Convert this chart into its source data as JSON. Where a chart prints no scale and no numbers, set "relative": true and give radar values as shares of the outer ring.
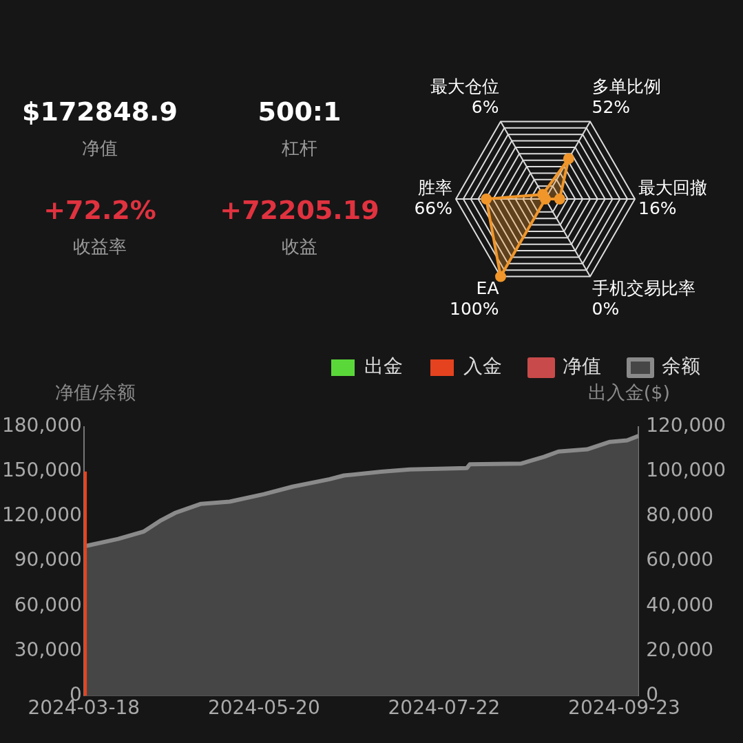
{
  "chart_data": [
    {
      "type": "other",
      "annotations": [
        "$172848.9",
        "净值",
        "500:1",
        "杠杆",
        "+72.2%",
        "收益率",
        "+72205.19",
        "收益"
      ]
    },
    {
      "type": "radar",
      "relative": true,
      "categories": [
        "最大仓位 6%",
        "多单比例 52%",
        "最大回撤 16%",
        "手机交易比率 0%",
        "EA 100%",
        "胜率 66%"
      ],
      "marker": "circle",
      "series": [
        {
          "color": "#f0962a",
          "values": [
            0.06,
            0.52,
            0.16,
            0,
            1,
            0.66
          ]
        }
      ]
    },
    {
      "type": "area",
      "ylabel": "净值/余额",
      "y2label": "出入金($)",
      "legend": "top right",
      "grid": false,
      "marker": "none",
      "x": [
        "2024-03-18",
        "2024-03-30",
        "2024-04-08",
        "2024-04-14",
        "2024-04-19",
        "2024-04-28",
        "2024-05-08",
        "2024-05-20",
        "2024-05-30",
        "2024-06-12",
        "2024-06-17",
        "2024-06-30",
        "2024-07-10",
        "2024-07-30",
        "2024-07-31",
        "2024-08-18",
        "2024-08-26",
        "2024-08-31",
        "2024-09-10",
        "2024-09-18",
        "2024-09-24",
        "2024-09-28"
      ],
      "xlim": [
        "2024-03-18",
        "2024-09-28"
      ],
      "xticks": [
        "2024-03-18",
        "2024-05-20",
        "2024-07-22",
        "2024-09-23"
      ],
      "ylim": [
        0,
        180000
      ],
      "yticks": [
        {
          "value": 0,
          "label": "0"
        },
        {
          "value": 30000,
          "label": "30,000"
        },
        {
          "value": 60000,
          "label": "60,000"
        },
        {
          "value": 90000,
          "label": "90,000"
        },
        {
          "value": 120000,
          "label": "120,000"
        },
        {
          "value": 150000,
          "label": "150,000"
        },
        {
          "value": 180000,
          "label": "180,000"
        }
      ],
      "y2lim": [
        0,
        120000
      ],
      "y2ticks": [
        {
          "value": 0,
          "label": "0"
        },
        {
          "value": 20000,
          "label": "20,000"
        },
        {
          "value": 40000,
          "label": "40,000"
        },
        {
          "value": 60000,
          "label": "60,000"
        },
        {
          "value": 80000,
          "label": "80,000"
        },
        {
          "value": 100000,
          "label": "100,000"
        },
        {
          "value": 120000,
          "label": "120,000"
        }
      ],
      "series": [
        {
          "name": "净值",
          "color": "#c94a4a",
          "type": "line",
          "values": [
            null,
            null,
            null,
            null,
            null,
            null,
            null,
            null,
            null,
            null,
            null,
            null,
            null,
            null,
            null,
            null,
            null,
            null,
            null,
            null,
            null,
            null
          ]
        },
        {
          "name": "余额",
          "color": "#8a8a8a",
          "values": [
            100000,
            105000,
            110000,
            117500,
            122500,
            128500,
            130000,
            135000,
            140000,
            145000,
            147500,
            150000,
            151500,
            152500,
            155000,
            155500,
            160000,
            163500,
            165000,
            170000,
            171000,
            174000
          ]
        },
        {
          "name": "出金",
          "color": "#5ad83a",
          "type": "bar",
          "axis": "y2",
          "values": [
            null,
            null,
            null,
            null,
            null,
            null,
            null,
            null,
            null,
            null,
            null,
            null,
            null,
            null,
            null,
            null,
            null,
            null,
            null,
            null,
            null,
            null
          ]
        },
        {
          "name": "入金",
          "color": "#e5431f",
          "type": "bar",
          "axis": "y2",
          "x": [
            "2024-03-18"
          ],
          "values": [
            100000
          ]
        }
      ]
    }
  ]
}
